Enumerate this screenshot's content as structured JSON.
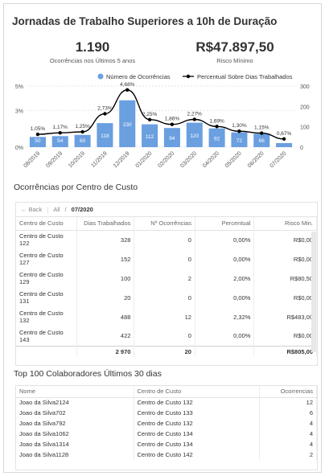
{
  "title": "Jornadas de Trabalho Superiores a 10h de Duração",
  "kpis": [
    {
      "value": "1.190",
      "label": "Ocorrências nos Últimos 5 anos"
    },
    {
      "value": "R$47.897,50",
      "label": "Risco Mínimo"
    }
  ],
  "chart_data": {
    "type": "bar",
    "categories": [
      "08/2019",
      "09/2019",
      "10/2019",
      "11/2019",
      "12/2019",
      "01/2020",
      "02/2020",
      "03/2020",
      "04/2020",
      "05/2020",
      "06/2020",
      "07/2020"
    ],
    "series": [
      {
        "name": "Número de Ocorrências",
        "values": [
          50,
          54,
          60,
          118,
          230,
          112,
          94,
          120,
          92,
          72,
          66,
          20
        ],
        "axis": "right",
        "color": "#6a9fe0"
      },
      {
        "name": "Percentual Sobre Dias Trabalhados",
        "values": [
          1.05,
          1.17,
          1.25,
          2.73,
          4.68,
          2.25,
          1.86,
          2.27,
          1.69,
          1.3,
          1.15,
          0.67
        ],
        "labels": [
          "1,05%",
          "1,17%",
          "1,25%",
          "2,73%",
          "4,68%",
          "2,25%",
          "1,86%",
          "2,27%",
          "1,69%",
          "1,30%",
          "1,15%",
          "0,67%"
        ],
        "axis": "left",
        "color": "#000000"
      }
    ],
    "y_left": {
      "ticks": [
        "0%",
        "3%",
        "5%"
      ],
      "values": [
        0,
        3,
        5
      ],
      "range": [
        0,
        5
      ]
    },
    "y_right": {
      "ticks": [
        "0",
        "100",
        "200",
        "300"
      ],
      "values": [
        0,
        100,
        200,
        300
      ],
      "range": [
        0,
        300
      ]
    },
    "legend_position": "top-right"
  },
  "section1": {
    "title": "Ocorrências por Centro de Custo",
    "back": "Back",
    "crumb_all": "All",
    "crumb_current": "07/2020",
    "headers": [
      "Centro de Custo",
      "Dias Trabalhados",
      "Nº Ocorrências",
      "Percentual",
      "Risco Min."
    ],
    "rows": [
      [
        "Centro de Custo 122",
        "328",
        "0",
        "0,00%",
        "R$0,00"
      ],
      [
        "Centro de Custo 127",
        "152",
        "0",
        "0,00%",
        "R$0,00"
      ],
      [
        "Centro de Custo 129",
        "100",
        "2",
        "2,00%",
        "R$80,50"
      ],
      [
        "Centro de Custo 131",
        "20",
        "0",
        "0,00%",
        "R$0,00"
      ],
      [
        "Centro de Custo 132",
        "488",
        "12",
        "2,32%",
        "R$483,00"
      ],
      [
        "Centro de Custo 143",
        "422",
        "0",
        "0,00%",
        "R$0,00"
      ]
    ],
    "totals": [
      "",
      "2 970",
      "20",
      "",
      "R$805,00"
    ]
  },
  "section2": {
    "title": "Top 100 Colaboradores Últimos 30 dias",
    "headers": [
      "Nome",
      "Centro de Custo",
      "Ocorrencias"
    ],
    "rows": [
      [
        "Joao da Silva2124",
        "Centro de Custo 132",
        "12"
      ],
      [
        "Joao da Silva702",
        "Centro de Custo 133",
        "6"
      ],
      [
        "Joao da Silva792",
        "Centro de Custo 132",
        "4"
      ],
      [
        "Joao da Silva1062",
        "Centro de Custo 134",
        "4"
      ],
      [
        "Joao da Silva1314",
        "Centro de Custo 134",
        "4"
      ],
      [
        "Joao da Silva1128",
        "Centro de Custo 142",
        "2"
      ]
    ]
  }
}
